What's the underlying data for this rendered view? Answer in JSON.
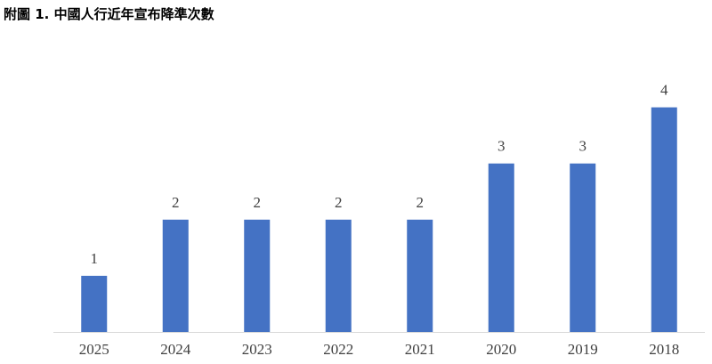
{
  "chart_data": {
    "type": "bar",
    "title": "附圖 1. 中國人行近年宣布降準次數",
    "xlabel": "",
    "ylabel": "",
    "categories": [
      "2025",
      "2024",
      "2023",
      "2022",
      "2021",
      "2020",
      "2019",
      "2018"
    ],
    "values": [
      1,
      2,
      2,
      2,
      2,
      3,
      3,
      4
    ],
    "ylim": [
      0,
      4
    ],
    "grid": false,
    "legend": "none",
    "data_labels": true,
    "bar_color": "#4472C4",
    "axis_color": "#D9D9D9"
  }
}
